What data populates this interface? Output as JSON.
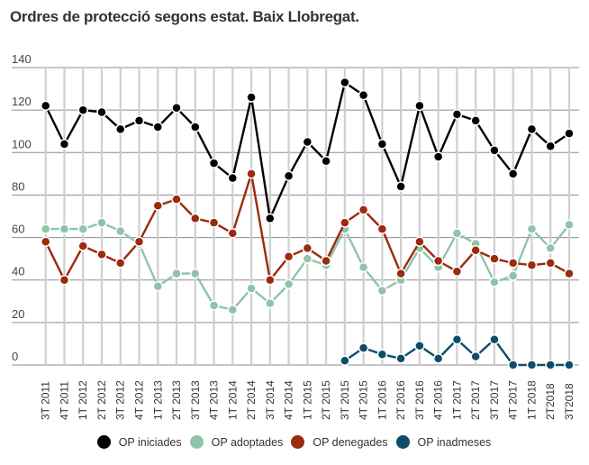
{
  "title": "Ordres de protecció segons estat. Baix Llobregat.",
  "chart_data": {
    "type": "line",
    "title": "Ordres de protecció segons estat. Baix Llobregat.",
    "xlabel": "",
    "ylabel": "",
    "ylim": [
      0,
      140
    ],
    "yticks": [
      0,
      20,
      40,
      60,
      80,
      100,
      120,
      140
    ],
    "grid": true,
    "legend_position": "bottom",
    "categories": [
      "3T 2011",
      "4T 2011",
      "1T 2012",
      "2T 2012",
      "3T 2012",
      "4T 2012",
      "1T 2013",
      "2T 2013",
      "3T 2013",
      "4T 2013",
      "1T 2014",
      "2T 2014",
      "3T 2014",
      "4T 2014",
      "1T 2015",
      "2T 2015",
      "3T 2015",
      "4T 2015",
      "1T 2016",
      "2T 2016",
      "3T 2016",
      "4T 2016",
      "1T 2017",
      "2T 2017",
      "3T 2017",
      "4T 2017",
      "1T 2018",
      "2T2018",
      "3T2018"
    ],
    "series": [
      {
        "name": "OP iniciades",
        "color": "#000000",
        "values": [
          122,
          104,
          120,
          119,
          111,
          115,
          112,
          121,
          112,
          95,
          88,
          126,
          69,
          89,
          105,
          96,
          133,
          127,
          104,
          84,
          122,
          98,
          118,
          115,
          101,
          90,
          111,
          103,
          109
        ]
      },
      {
        "name": "OP adoptades",
        "color": "#8fc4aa",
        "values": [
          64,
          64,
          64,
          67,
          63,
          57,
          37,
          43,
          43,
          28,
          26,
          36,
          29,
          38,
          50,
          47,
          64,
          46,
          35,
          40,
          55,
          46,
          62,
          57,
          39,
          42,
          64,
          55,
          66
        ]
      },
      {
        "name": "OP denegades",
        "color": "#9b2a0f",
        "values": [
          58,
          40,
          56,
          52,
          48,
          58,
          75,
          78,
          69,
          67,
          62,
          90,
          40,
          51,
          55,
          49,
          67,
          73,
          64,
          43,
          58,
          49,
          44,
          54,
          50,
          48,
          47,
          48,
          43
        ]
      },
      {
        "name": "OP inadmeses",
        "color": "#0f4c6b",
        "values": [
          null,
          null,
          null,
          null,
          null,
          null,
          null,
          null,
          null,
          null,
          null,
          null,
          null,
          null,
          null,
          null,
          2,
          8,
          5,
          3,
          9,
          3,
          12,
          4,
          12,
          0,
          0,
          0,
          0
        ]
      }
    ]
  }
}
